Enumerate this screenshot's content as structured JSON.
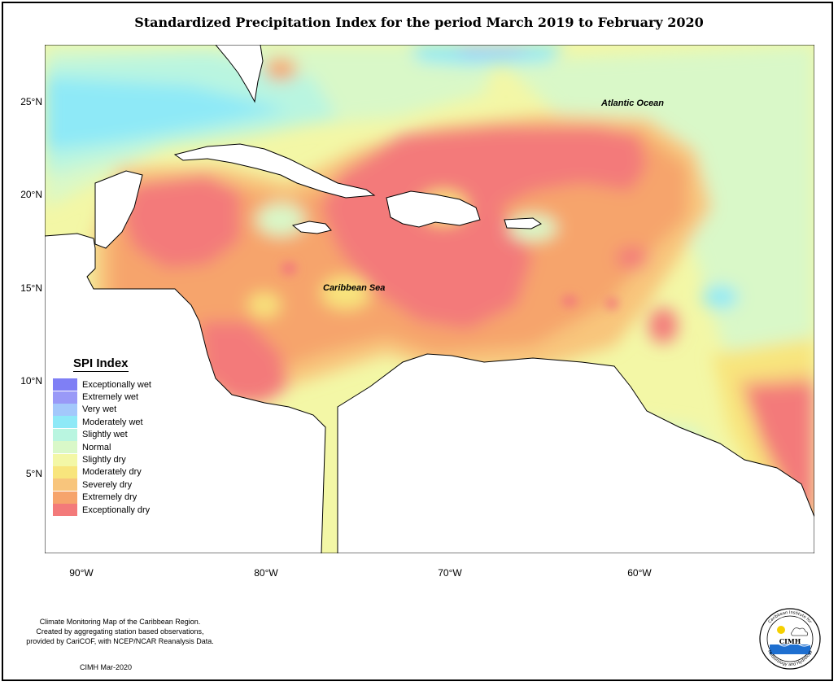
{
  "title": "Standardized Precipitation Index for the period March 2019 to February 2020",
  "map": {
    "lat_ticks": [
      "25°N",
      "20°N",
      "15°N",
      "10°N",
      "5°N"
    ],
    "lon_ticks": [
      "90°W",
      "80°W",
      "70°W",
      "60°W"
    ],
    "labels": {
      "atlantic": "Atlantic Ocean",
      "caribbean": "Caribbean Sea"
    }
  },
  "legend": {
    "title": "SPI Index",
    "items": [
      {
        "label": "Exceptionally wet",
        "color": "#7f7ff5"
      },
      {
        "label": "Extremely wet",
        "color": "#9999f7"
      },
      {
        "label": "Very wet",
        "color": "#a3c8fb"
      },
      {
        "label": "Moderately wet",
        "color": "#8ee9f7"
      },
      {
        "label": "Slightly wet",
        "color": "#b9f5e0"
      },
      {
        "label": "Normal",
        "color": "#d9f8c8"
      },
      {
        "label": "Slightly dry",
        "color": "#f3f7a6"
      },
      {
        "label": "Moderately dry",
        "color": "#f8e57d"
      },
      {
        "label": "Severely dry",
        "color": "#f8c57c"
      },
      {
        "label": "Extremely dry",
        "color": "#f6a46c"
      },
      {
        "label": "Exceptionally dry",
        "color": "#f37a7a"
      }
    ]
  },
  "credits": {
    "line1": "Climate Monitoring Map of the Caribbean Region.",
    "line2": "Created by aggregating station based observations,",
    "line3": "provided by CariCOF, with NCEP/NCAR Reanalysis Data.",
    "date": "CIMH Mar-2020"
  },
  "logo": {
    "text": "CIMH",
    "ring_top": "Caribbean Institute for",
    "ring_bottom": "Meteorology and Hydrology"
  }
}
